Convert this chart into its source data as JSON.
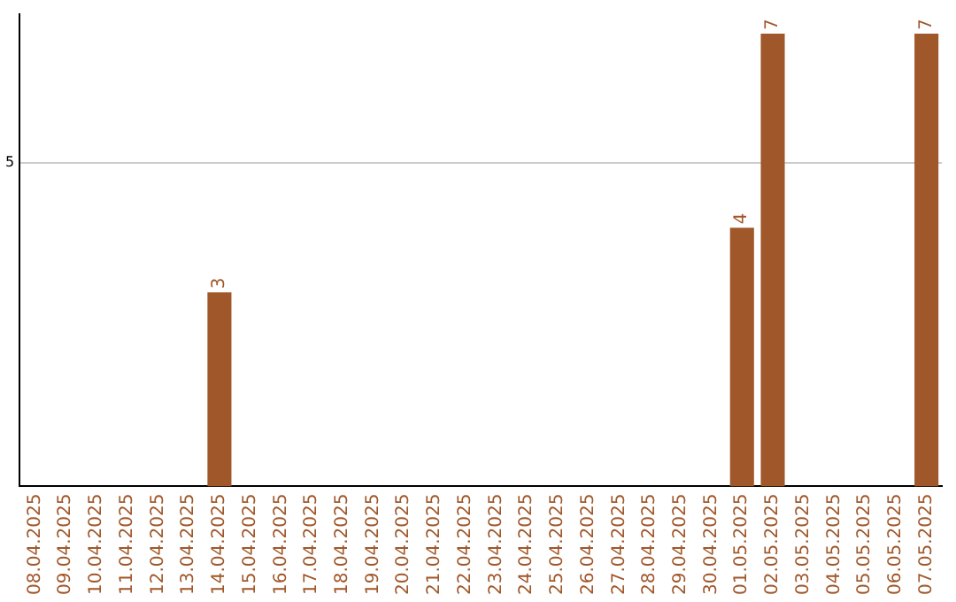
{
  "chart_data": {
    "type": "bar",
    "categories": [
      "08.04.2025",
      "09.04.2025",
      "10.04.2025",
      "11.04.2025",
      "12.04.2025",
      "13.04.2025",
      "14.04.2025",
      "15.04.2025",
      "16.04.2025",
      "17.04.2025",
      "18.04.2025",
      "19.04.2025",
      "20.04.2025",
      "21.04.2025",
      "22.04.2025",
      "23.04.2025",
      "24.04.2025",
      "25.04.2025",
      "26.04.2025",
      "27.04.2025",
      "28.04.2025",
      "29.04.2025",
      "30.04.2025",
      "01.05.2025",
      "02.05.2025",
      "03.05.2025",
      "04.05.2025",
      "05.05.2025",
      "06.05.2025",
      "07.05.2025"
    ],
    "values": [
      0,
      0,
      0,
      0,
      0,
      0,
      3,
      0,
      0,
      0,
      0,
      0,
      0,
      0,
      0,
      0,
      0,
      0,
      0,
      0,
      0,
      0,
      0,
      4,
      7,
      0,
      0,
      0,
      0,
      7
    ],
    "value_labels": [
      null,
      null,
      null,
      null,
      null,
      null,
      "3",
      null,
      null,
      null,
      null,
      null,
      null,
      null,
      null,
      null,
      null,
      null,
      null,
      null,
      null,
      null,
      null,
      "4",
      "7",
      null,
      null,
      null,
      null,
      "7"
    ],
    "color": "#a0572a",
    "ylim": [
      0,
      7.3
    ],
    "yticks": [
      5
    ],
    "grid": "y",
    "legend": false
  }
}
